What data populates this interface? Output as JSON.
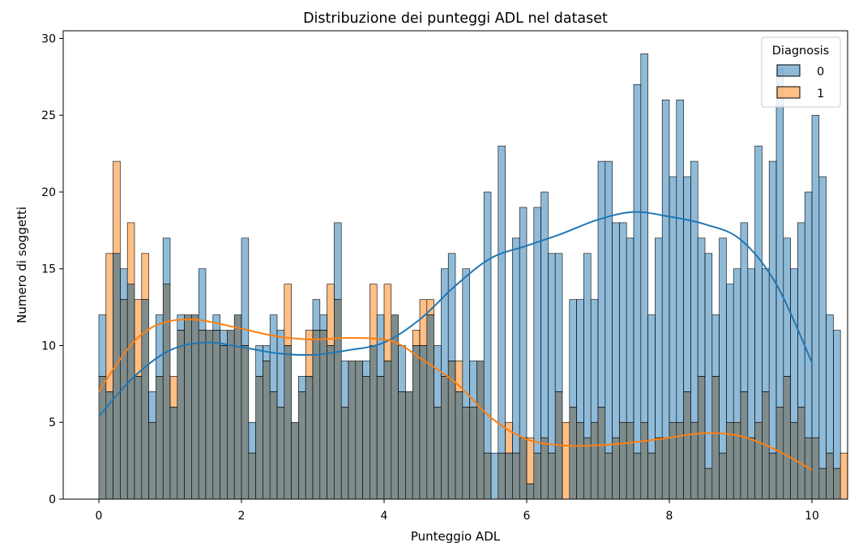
{
  "chart_data": {
    "type": "bar",
    "subtype": "overlaid histogram with KDE curves",
    "title": "Distribuzione dei punteggi ADL nel dataset",
    "xlabel": "Punteggio ADL",
    "ylabel": "Numero di soggetti",
    "xlim": [
      -0.5,
      10.5
    ],
    "ylim": [
      0,
      30.5
    ],
    "xticks": [
      0,
      2,
      4,
      6,
      8,
      10
    ],
    "yticks": [
      0,
      5,
      10,
      15,
      20,
      25,
      30
    ],
    "bin_start": 0,
    "bin_width": 0.1,
    "legend": {
      "title": "Diagnosis",
      "location": "top-right",
      "entries": [
        "0",
        "1"
      ]
    },
    "colors": {
      "series0_fill": "#1f77b4",
      "series1_fill": "#ff7f0e",
      "overlap_fill": "#7f8c8c",
      "kde0": "#1f77b4",
      "kde1": "#ff7f0e"
    },
    "series": [
      {
        "name": "0",
        "values": [
          12,
          7,
          16,
          15,
          14,
          8,
          13,
          7,
          12,
          17,
          6,
          12,
          12,
          12,
          15,
          11,
          12,
          11,
          11,
          12,
          17,
          5,
          10,
          10,
          12,
          11,
          10,
          5,
          8,
          8,
          13,
          12,
          10,
          18,
          9,
          9,
          9,
          9,
          10,
          12,
          9,
          12,
          10,
          7,
          10,
          10,
          12,
          10,
          15,
          16,
          7,
          15,
          9,
          9,
          20,
          3,
          23,
          3,
          17,
          19,
          1,
          19,
          20,
          16,
          16,
          0,
          13,
          13,
          16,
          13,
          22,
          22,
          18,
          18,
          17,
          27,
          29,
          12,
          17,
          26,
          21,
          26,
          21,
          22,
          17,
          16,
          12,
          17,
          14,
          15,
          18,
          15,
          23,
          15,
          22,
          28,
          17,
          15,
          18,
          20,
          25,
          21,
          12,
          11
        ],
        "kde": [
          [
            0,
            5.4
          ],
          [
            0.5,
            8.0
          ],
          [
            1.0,
            9.7
          ],
          [
            1.5,
            10.2
          ],
          [
            2.0,
            9.9
          ],
          [
            2.5,
            9.5
          ],
          [
            3.0,
            9.4
          ],
          [
            3.5,
            9.7
          ],
          [
            4.0,
            10.2
          ],
          [
            4.5,
            11.7
          ],
          [
            5.0,
            13.9
          ],
          [
            5.5,
            15.7
          ],
          [
            6.0,
            16.5
          ],
          [
            6.5,
            17.3
          ],
          [
            7.0,
            18.2
          ],
          [
            7.5,
            18.7
          ],
          [
            8.0,
            18.4
          ],
          [
            8.5,
            17.9
          ],
          [
            9.0,
            16.9
          ],
          [
            9.5,
            14.0
          ],
          [
            10.0,
            8.9
          ]
        ]
      },
      {
        "name": "1",
        "values": [
          8,
          16,
          22,
          13,
          18,
          13,
          16,
          5,
          8,
          14,
          8,
          11,
          12,
          12,
          11,
          11,
          11,
          10,
          11,
          12,
          10,
          3,
          8,
          9,
          7,
          6,
          14,
          5,
          7,
          11,
          11,
          11,
          14,
          13,
          6,
          9,
          9,
          8,
          14,
          8,
          14,
          12,
          7,
          7,
          11,
          13,
          13,
          6,
          8,
          9,
          9,
          6,
          6,
          9,
          3,
          0,
          3,
          5,
          3,
          4,
          4,
          3,
          4,
          3,
          7,
          5,
          6,
          5,
          4,
          5,
          6,
          3,
          4,
          5,
          5,
          3,
          5,
          3,
          4,
          4,
          5,
          5,
          7,
          5,
          8,
          2,
          8,
          3,
          5,
          5,
          7,
          4,
          5,
          7,
          3,
          6,
          8,
          5,
          6,
          4,
          4,
          2,
          3,
          2,
          3
        ],
        "kde": [
          [
            0,
            7.0
          ],
          [
            0.25,
            8.8
          ],
          [
            0.5,
            10.3
          ],
          [
            0.75,
            11.2
          ],
          [
            1.0,
            11.6
          ],
          [
            1.25,
            11.7
          ],
          [
            1.5,
            11.6
          ],
          [
            2.0,
            11.1
          ],
          [
            2.5,
            10.6
          ],
          [
            3.0,
            10.4
          ],
          [
            3.5,
            10.5
          ],
          [
            4.0,
            10.4
          ],
          [
            4.25,
            10.0
          ],
          [
            4.5,
            9.2
          ],
          [
            5.0,
            7.6
          ],
          [
            5.5,
            5.3
          ],
          [
            6.0,
            3.9
          ],
          [
            6.5,
            3.5
          ],
          [
            7.0,
            3.5
          ],
          [
            7.5,
            3.7
          ],
          [
            8.0,
            4.0
          ],
          [
            8.5,
            4.3
          ],
          [
            9.0,
            4.1
          ],
          [
            9.5,
            3.2
          ],
          [
            10.0,
            1.9
          ]
        ]
      }
    ]
  }
}
